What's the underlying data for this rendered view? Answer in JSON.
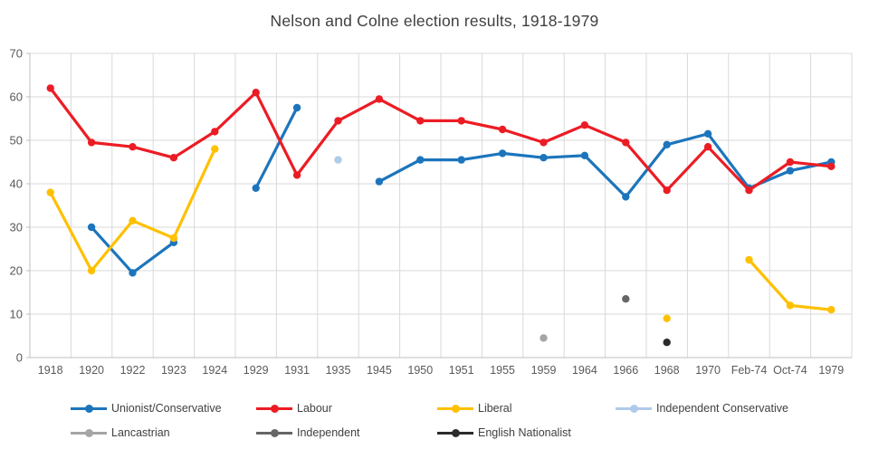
{
  "title": "Nelson and Colne election results, 1918-1979",
  "chart_data": {
    "type": "line",
    "title": "Nelson and Colne election results, 1918-1979",
    "xlabel": "",
    "ylabel": "",
    "ylim": [
      0,
      70
    ],
    "y_ticks": [
      0,
      10,
      20,
      30,
      40,
      50,
      60,
      70
    ],
    "grid": true,
    "legend_position": "bottom",
    "categories": [
      "1918",
      "1920",
      "1922",
      "1923",
      "1924",
      "1929",
      "1931",
      "1935",
      "1945",
      "1950",
      "1951",
      "1955",
      "1959",
      "1964",
      "1966",
      "1968",
      "1970",
      "Feb-74",
      "Oct-74",
      "1979"
    ],
    "series": [
      {
        "name": "Unionist/Conservative",
        "color": "#1C75BC",
        "values": [
          null,
          30,
          19.5,
          26.5,
          null,
          39,
          57.5,
          null,
          40.5,
          45.5,
          45.5,
          47,
          46,
          46.5,
          37,
          49,
          51.5,
          39,
          43,
          45
        ]
      },
      {
        "name": "Labour",
        "color": "#EC1C24",
        "values": [
          62,
          49.5,
          48.5,
          46,
          52,
          61,
          42,
          54.5,
          59.5,
          54.5,
          54.5,
          52.5,
          49.5,
          53.5,
          49.5,
          38.5,
          48.5,
          38.5,
          45,
          44
        ]
      },
      {
        "name": "Liberal",
        "color": "#FFC000",
        "values": [
          38,
          20,
          31.5,
          27.5,
          48,
          null,
          null,
          null,
          null,
          null,
          null,
          null,
          null,
          null,
          null,
          9,
          null,
          22.5,
          12,
          11
        ]
      },
      {
        "name": "Independent Conservative",
        "color": "#AECBE9",
        "values": [
          null,
          null,
          null,
          null,
          null,
          null,
          null,
          45.5,
          null,
          null,
          null,
          null,
          null,
          null,
          null,
          null,
          null,
          null,
          null,
          null
        ]
      },
      {
        "name": "Lancastrian",
        "color": "#A5A5A5",
        "values": [
          null,
          null,
          null,
          null,
          null,
          null,
          null,
          null,
          null,
          null,
          null,
          null,
          4.5,
          null,
          null,
          null,
          null,
          null,
          null,
          null
        ]
      },
      {
        "name": "Independent",
        "color": "#666666",
        "values": [
          null,
          null,
          null,
          null,
          null,
          null,
          null,
          null,
          null,
          null,
          null,
          null,
          null,
          null,
          13.5,
          null,
          null,
          null,
          null,
          null
        ]
      },
      {
        "name": "English Nationalist",
        "color": "#2B2B2B",
        "values": [
          null,
          null,
          null,
          null,
          null,
          null,
          null,
          null,
          null,
          null,
          null,
          null,
          null,
          null,
          null,
          3.5,
          null,
          null,
          null,
          null
        ]
      }
    ]
  },
  "axes": {
    "y_tick_color": "#595959",
    "x_tick_color": "#595959",
    "gridline_color": "#D9D9D9",
    "axis_line_color": "#BFBFBF"
  }
}
